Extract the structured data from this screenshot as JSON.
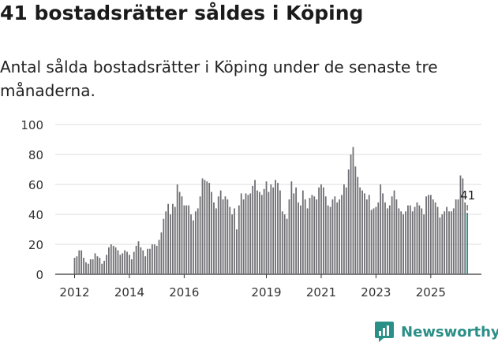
{
  "header": {
    "title": "41 bostadsrätter såldes i Köping",
    "subtitle": "Antal sålda bostadsrätter i Köping under de senaste tre månaderna."
  },
  "brand": {
    "name": "Newsworthy",
    "icon": "newsworthy-logo-icon",
    "color": "#2a8f86"
  },
  "chart_data": {
    "type": "bar",
    "title": "",
    "xlabel": "",
    "ylabel": "",
    "ylim": [
      0,
      100
    ],
    "yticks": [
      0,
      20,
      40,
      60,
      80,
      100
    ],
    "xticks": [
      {
        "label": "2012",
        "index": 0
      },
      {
        "label": "2014",
        "index": 24
      },
      {
        "label": "2016",
        "index": 48
      },
      {
        "label": "2019",
        "index": 84
      },
      {
        "label": "2021",
        "index": 108
      },
      {
        "label": "2023",
        "index": 132
      },
      {
        "label": "2025",
        "index": 156
      }
    ],
    "bar_color": "#6f6e73",
    "highlight_color": "#2a8f86",
    "highlight_label": "41",
    "values": [
      11,
      12,
      16,
      16,
      11,
      8,
      7,
      10,
      10,
      14,
      12,
      11,
      7,
      9,
      13,
      18,
      20,
      19,
      18,
      16,
      13,
      14,
      16,
      15,
      13,
      10,
      15,
      19,
      22,
      18,
      16,
      12,
      17,
      17,
      20,
      20,
      19,
      23,
      28,
      37,
      42,
      47,
      40,
      47,
      45,
      60,
      55,
      52,
      46,
      46,
      46,
      40,
      36,
      42,
      44,
      52,
      64,
      63,
      62,
      61,
      55,
      48,
      44,
      52,
      56,
      50,
      52,
      50,
      45,
      40,
      44,
      30,
      46,
      54,
      50,
      54,
      53,
      54,
      59,
      63,
      56,
      55,
      53,
      57,
      62,
      55,
      60,
      58,
      63,
      61,
      56,
      42,
      40,
      37,
      50,
      62,
      54,
      58,
      48,
      46,
      56,
      50,
      44,
      51,
      53,
      52,
      50,
      58,
      60,
      58,
      52,
      46,
      45,
      50,
      52,
      48,
      50,
      53,
      60,
      58,
      70,
      80,
      85,
      72,
      65,
      58,
      56,
      54,
      50,
      53,
      43,
      44,
      45,
      48,
      60,
      54,
      48,
      44,
      46,
      52,
      56,
      50,
      44,
      42,
      40,
      42,
      46,
      46,
      42,
      45,
      48,
      46,
      44,
      40,
      52,
      53,
      53,
      50,
      48,
      45,
      38,
      40,
      42,
      45,
      42,
      42,
      44,
      50,
      50,
      66,
      64,
      48,
      41
    ]
  }
}
